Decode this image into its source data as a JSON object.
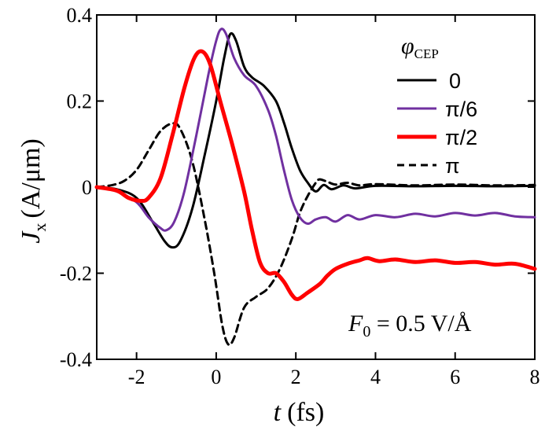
{
  "chart_data": {
    "type": "line",
    "xlabel": {
      "symbol": "t",
      "unit": "(fs)"
    },
    "ylabel": {
      "symbol": "J",
      "subscript": "x",
      "unit": "(A/μm)"
    },
    "xlim": [
      -3,
      8
    ],
    "ylim": [
      -0.4,
      0.4
    ],
    "x_ticks": [
      -2,
      0,
      2,
      4,
      6,
      8
    ],
    "y_ticks": [
      -0.4,
      -0.2,
      0,
      0.2,
      0.4
    ],
    "x_tick_labels": [
      "-2",
      "0",
      "2",
      "4",
      "6",
      "8"
    ],
    "y_tick_labels": [
      "-0.4",
      "-0.2",
      "0",
      "0.2",
      "0.4"
    ],
    "legend": {
      "title": "φ",
      "title_subscript": "CEP",
      "position": "top-right"
    },
    "annotation": {
      "symbol": "F",
      "subscript": "0",
      "text": " = 0.5 V/Å"
    },
    "series": [
      {
        "name": "0",
        "color": "#000000",
        "style": "solid",
        "width": "medium",
        "points": [
          [
            -3,
            0
          ],
          [
            -2.5,
            -0.005
          ],
          [
            -2.0,
            -0.025
          ],
          [
            -1.6,
            -0.08
          ],
          [
            -1.3,
            -0.125
          ],
          [
            -1.1,
            -0.14
          ],
          [
            -0.9,
            -0.125
          ],
          [
            -0.6,
            -0.05
          ],
          [
            -0.3,
            0.07
          ],
          [
            0,
            0.2
          ],
          [
            0.2,
            0.3
          ],
          [
            0.35,
            0.355
          ],
          [
            0.5,
            0.34
          ],
          [
            0.7,
            0.28
          ],
          [
            0.9,
            0.255
          ],
          [
            1.2,
            0.235
          ],
          [
            1.5,
            0.2
          ],
          [
            1.7,
            0.15
          ],
          [
            1.9,
            0.09
          ],
          [
            2.1,
            0.04
          ],
          [
            2.3,
            0.01
          ],
          [
            2.5,
            -0.01
          ],
          [
            2.7,
            0.005
          ],
          [
            2.9,
            -0.005
          ],
          [
            3.2,
            0.004
          ],
          [
            3.5,
            -0.003
          ],
          [
            4,
            0.003
          ],
          [
            5,
            0.002
          ],
          [
            6,
            0.003
          ],
          [
            7,
            0.002
          ],
          [
            8,
            0.003
          ]
        ]
      },
      {
        "name": "π/6",
        "color": "#7030a0",
        "style": "solid",
        "width": "medium",
        "points": [
          [
            -3,
            0
          ],
          [
            -2.5,
            -0.01
          ],
          [
            -2.0,
            -0.035
          ],
          [
            -1.7,
            -0.07
          ],
          [
            -1.4,
            -0.095
          ],
          [
            -1.25,
            -0.1
          ],
          [
            -1.05,
            -0.08
          ],
          [
            -0.8,
            -0.01
          ],
          [
            -0.5,
            0.12
          ],
          [
            -0.2,
            0.26
          ],
          [
            0,
            0.34
          ],
          [
            0.12,
            0.367
          ],
          [
            0.25,
            0.355
          ],
          [
            0.45,
            0.3
          ],
          [
            0.7,
            0.26
          ],
          [
            1.0,
            0.235
          ],
          [
            1.3,
            0.18
          ],
          [
            1.5,
            0.12
          ],
          [
            1.7,
            0.04
          ],
          [
            1.9,
            -0.03
          ],
          [
            2.1,
            -0.07
          ],
          [
            2.3,
            -0.085
          ],
          [
            2.5,
            -0.075
          ],
          [
            2.75,
            -0.07
          ],
          [
            3.0,
            -0.08
          ],
          [
            3.3,
            -0.065
          ],
          [
            3.6,
            -0.075
          ],
          [
            4.0,
            -0.065
          ],
          [
            4.5,
            -0.07
          ],
          [
            5.0,
            -0.062
          ],
          [
            5.5,
            -0.068
          ],
          [
            6.0,
            -0.06
          ],
          [
            6.5,
            -0.066
          ],
          [
            7.0,
            -0.06
          ],
          [
            7.5,
            -0.068
          ],
          [
            8.0,
            -0.07
          ]
        ]
      },
      {
        "name": "π/2",
        "color": "#ff0000",
        "style": "solid",
        "width": "thick",
        "points": [
          [
            -3,
            0
          ],
          [
            -2.5,
            -0.008
          ],
          [
            -2.2,
            -0.025
          ],
          [
            -1.9,
            -0.032
          ],
          [
            -1.7,
            -0.025
          ],
          [
            -1.4,
            0.02
          ],
          [
            -1.1,
            0.12
          ],
          [
            -0.8,
            0.23
          ],
          [
            -0.55,
            0.3
          ],
          [
            -0.35,
            0.315
          ],
          [
            -0.15,
            0.285
          ],
          [
            0.1,
            0.2
          ],
          [
            0.4,
            0.1
          ],
          [
            0.7,
            -0.01
          ],
          [
            0.9,
            -0.1
          ],
          [
            1.1,
            -0.175
          ],
          [
            1.3,
            -0.2
          ],
          [
            1.5,
            -0.2
          ],
          [
            1.7,
            -0.22
          ],
          [
            1.9,
            -0.25
          ],
          [
            2.05,
            -0.26
          ],
          [
            2.3,
            -0.245
          ],
          [
            2.6,
            -0.225
          ],
          [
            2.8,
            -0.205
          ],
          [
            3.0,
            -0.19
          ],
          [
            3.3,
            -0.178
          ],
          [
            3.6,
            -0.17
          ],
          [
            3.8,
            -0.165
          ],
          [
            4.1,
            -0.172
          ],
          [
            4.5,
            -0.168
          ],
          [
            5.0,
            -0.174
          ],
          [
            5.5,
            -0.17
          ],
          [
            6.0,
            -0.176
          ],
          [
            6.5,
            -0.174
          ],
          [
            7.0,
            -0.18
          ],
          [
            7.5,
            -0.178
          ],
          [
            8.0,
            -0.19
          ]
        ]
      },
      {
        "name": "π",
        "color": "#000000",
        "style": "dashed",
        "width": "medium",
        "points": [
          [
            -3,
            0
          ],
          [
            -2.6,
            0.005
          ],
          [
            -2.3,
            0.015
          ],
          [
            -2.0,
            0.04
          ],
          [
            -1.7,
            0.085
          ],
          [
            -1.4,
            0.13
          ],
          [
            -1.1,
            0.148
          ],
          [
            -0.9,
            0.135
          ],
          [
            -0.6,
            0.06
          ],
          [
            -0.3,
            -0.07
          ],
          [
            -0.05,
            -0.2
          ],
          [
            0.15,
            -0.32
          ],
          [
            0.3,
            -0.365
          ],
          [
            0.45,
            -0.35
          ],
          [
            0.7,
            -0.28
          ],
          [
            1.0,
            -0.255
          ],
          [
            1.3,
            -0.235
          ],
          [
            1.6,
            -0.19
          ],
          [
            1.9,
            -0.12
          ],
          [
            2.1,
            -0.06
          ],
          [
            2.3,
            -0.02
          ],
          [
            2.5,
            0.01
          ],
          [
            2.6,
            0.018
          ],
          [
            2.8,
            0.012
          ],
          [
            3.0,
            0.006
          ],
          [
            3.3,
            0.01
          ],
          [
            3.6,
            0.004
          ],
          [
            4.0,
            0.007
          ],
          [
            5.0,
            0.004
          ],
          [
            6.0,
            0.006
          ],
          [
            7.0,
            0.004
          ],
          [
            8.0,
            0.005
          ]
        ]
      }
    ]
  }
}
